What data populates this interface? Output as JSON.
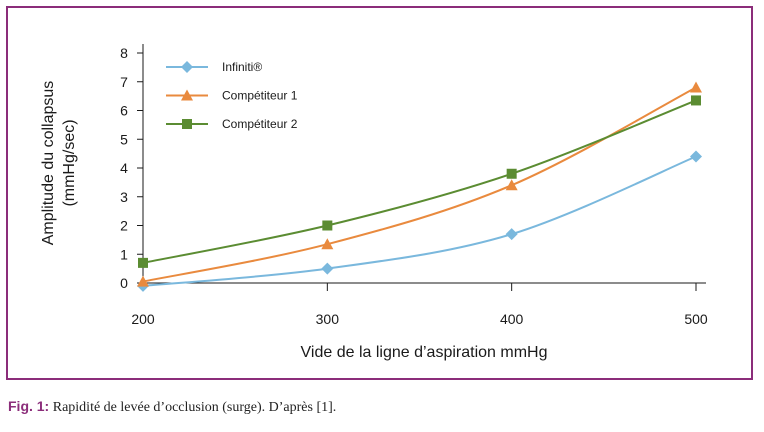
{
  "chart_data": {
    "type": "line",
    "xlabel": "Vide de la ligne d’aspiration mmHg",
    "ylabel_line1": "Amplitude du collapsus",
    "ylabel_line2": "(mmHg/sec)",
    "x": [
      200,
      300,
      400,
      500
    ],
    "x_ticks": [
      "200",
      "300",
      "400",
      "500"
    ],
    "y_ticks": [
      "0",
      "1",
      "2",
      "3",
      "4",
      "5",
      "6",
      "7",
      "8"
    ],
    "xlim": [
      200,
      500
    ],
    "ylim": [
      0,
      8
    ],
    "grid": false,
    "legend_position": "top-left",
    "series": [
      {
        "name": "Infiniti®",
        "values": [
          -0.1,
          0.5,
          1.7,
          4.4
        ],
        "color": "#7ab8dd",
        "marker": "diamond"
      },
      {
        "name": "Compétiteur 1",
        "values": [
          0.05,
          1.35,
          3.4,
          6.8
        ],
        "color": "#e98a3e",
        "marker": "triangle"
      },
      {
        "name": "Compétiteur 2",
        "values": [
          0.7,
          2.0,
          3.8,
          6.35
        ],
        "color": "#5b8c32",
        "marker": "square"
      }
    ]
  },
  "caption": {
    "label": "Fig. 1:",
    "text": "Rapidité de levée d’occlusion (surge). D’après [1]."
  }
}
